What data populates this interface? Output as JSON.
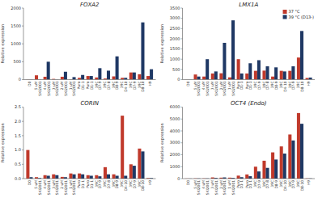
{
  "chart_data": [
    {
      "type": "bar",
      "title": "FOXA2",
      "ylabel": "Relative expression",
      "categories": [
        "D0",
        "5 uM\nSKI2001",
        "4 uM\nSKI2001",
        "3 uM\nSKI2001",
        "2 uM\nSKI2001",
        "1 uM\nSKI2001",
        "Puro\nD1-1",
        "Puro\nD1-1",
        "39C\nD7-9",
        "39C\nD7-8",
        "39C\nD8-9",
        "39C\nD4-10",
        "39C\nD7-9",
        "39C\nD8-10",
        "H9"
      ],
      "series": [
        {
          "color": "#c0392b",
          "values": [
            5,
            120,
            80,
            20,
            80,
            10,
            50,
            100,
            60,
            30,
            90,
            50,
            200,
            150,
            100
          ]
        },
        {
          "color": "#1f3864",
          "values": [
            5,
            5,
            500,
            5,
            220,
            70,
            130,
            100,
            320,
            250,
            650,
            50,
            200,
            1600,
            290
          ]
        }
      ],
      "ylim": [
        0,
        2000
      ],
      "yticks": [
        0,
        500,
        1000,
        1500,
        2000
      ]
    },
    {
      "type": "bar",
      "title": "LMX1A",
      "ylabel": "Relative expression",
      "categories": [
        "D0",
        "5 uM\nSKI2001",
        "4 uM\nSKI2001",
        "3 uM\nSKI2001",
        "2 uM\nSKI2001",
        "1 uM\nSKI2001",
        "Puro\nD1-1",
        "Puro\nD1-1",
        "39C\nD7-9",
        "39C\nD7-8",
        "39C\nD8-9",
        "39C\nD4-10",
        "39C\nD7-9",
        "39C\nD8-10",
        "H9"
      ],
      "series": [
        {
          "name": "37 °C",
          "color": "#c0392b",
          "values": [
            5,
            250,
            150,
            300,
            310,
            110,
            1000,
            300,
            430,
            440,
            150,
            430,
            430,
            1080,
            80
          ]
        },
        {
          "name": "39 °C (D13-)",
          "color": "#1f3864",
          "values": [
            5,
            150,
            1000,
            400,
            1800,
            2900,
            300,
            800,
            950,
            650,
            600,
            400,
            650,
            2380,
            100
          ]
        }
      ],
      "ylim": [
        0,
        3500
      ],
      "yticks": [
        0,
        500,
        1000,
        1500,
        2000,
        2500,
        3000,
        3500
      ],
      "legend": "upper right"
    },
    {
      "type": "bar",
      "title": "CORIN",
      "ylabel": "Relative expression",
      "categories": [
        "D0",
        "5 uM\nSKI2001",
        "4 uM\nSKI2001",
        "3 uM\nSKI2001",
        "2 uM\nSKI2001",
        "1 uM\nSKI2001",
        "Puro\nD1-1",
        "Puro\nD1-1",
        "39C\nD7-9",
        "39C\nD7-8",
        "39C\nD8-9",
        "39C\nD4-10",
        "39C\nD7-9",
        "39C\nD8-10",
        "H9"
      ],
      "series": [
        {
          "color": "#c0392b",
          "values": [
            1.0,
            0.05,
            0.12,
            0.15,
            0.06,
            0.18,
            0.18,
            0.12,
            0.12,
            0.4,
            0.15,
            2.2,
            0.5,
            1.05,
            0.02
          ]
        },
        {
          "color": "#1f3864",
          "values": [
            0.05,
            0.02,
            0.1,
            0.12,
            0.05,
            0.15,
            0.15,
            0.1,
            0.08,
            0.15,
            0.1,
            0.1,
            0.45,
            0.95,
            0.02
          ]
        }
      ],
      "ylim": [
        0,
        2.5
      ],
      "yticks": [
        {
          "value": 0,
          "label": "0.0"
        },
        0.5,
        {
          "value": 1,
          "label": "1.0"
        },
        1.5,
        {
          "value": 2,
          "label": "2.0"
        },
        2.5
      ]
    },
    {
      "type": "bar",
      "title": "OCT4 (Endo)",
      "ylabel": "Relative expression",
      "categories": [
        "D0",
        "5 uM\nSKI2001",
        "4 uM\nSKI2001",
        "3 uM\nSKI2001",
        "2 uM\nSKI2001",
        "1 uM\nSKI2001",
        "Puro\nD1-1",
        "Puro\nD1-1",
        "39C\nD7-9",
        "39C\nD7-8",
        "39C\nD8-9",
        "39C\nD4-10",
        "39C\nD7-9",
        "39C\nD8-10",
        "H9"
      ],
      "series": [
        {
          "color": "#c0392b",
          "values": [
            10,
            20,
            20,
            100,
            80,
            80,
            250,
            350,
            1000,
            1500,
            2200,
            2700,
            3700,
            5500,
            20
          ]
        },
        {
          "color": "#1f3864",
          "values": [
            10,
            20,
            20,
            60,
            100,
            60,
            120,
            200,
            600,
            900,
            1600,
            2100,
            3200,
            4600,
            20
          ]
        }
      ],
      "ylim": [
        0,
        6000
      ],
      "yticks": [
        0,
        1000,
        2000,
        3000,
        4000,
        5000,
        6000
      ]
    }
  ]
}
